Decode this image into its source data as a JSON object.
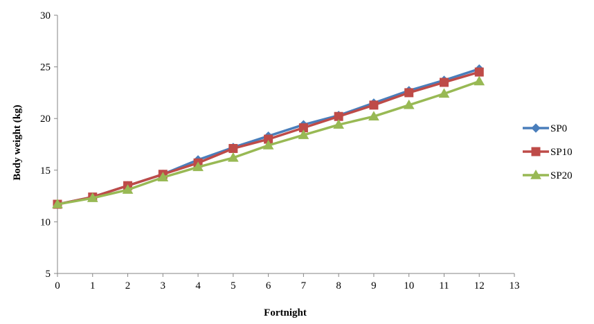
{
  "chart_data": {
    "type": "line",
    "title": "",
    "xlabel": "Fortnight",
    "ylabel": "Body  weight (kg)",
    "xlim": [
      0,
      13
    ],
    "ylim": [
      5,
      30
    ],
    "x_ticks": [
      0,
      1,
      2,
      3,
      4,
      5,
      6,
      7,
      8,
      9,
      10,
      11,
      12,
      13
    ],
    "y_ticks": [
      5,
      10,
      15,
      20,
      25,
      30
    ],
    "grid": false,
    "legend_position": "right",
    "x": [
      0,
      1,
      2,
      3,
      4,
      5,
      6,
      7,
      8,
      9,
      10,
      11,
      12
    ],
    "series": [
      {
        "name": "SP0",
        "color": "#4a7ebb",
        "marker": "diamond",
        "values": [
          11.7,
          12.4,
          13.5,
          14.6,
          16.0,
          17.2,
          18.3,
          19.4,
          20.3,
          21.5,
          22.7,
          23.7,
          24.8
        ]
      },
      {
        "name": "SP10",
        "color": "#be4b48",
        "marker": "square",
        "values": [
          11.7,
          12.4,
          13.5,
          14.6,
          15.7,
          17.1,
          18.0,
          19.1,
          20.2,
          21.3,
          22.5,
          23.5,
          24.5
        ]
      },
      {
        "name": "SP20",
        "color": "#98b954",
        "marker": "triangle",
        "values": [
          11.7,
          12.3,
          13.1,
          14.3,
          15.3,
          16.2,
          17.4,
          18.4,
          19.4,
          20.2,
          21.3,
          22.4,
          23.6
        ]
      }
    ]
  }
}
